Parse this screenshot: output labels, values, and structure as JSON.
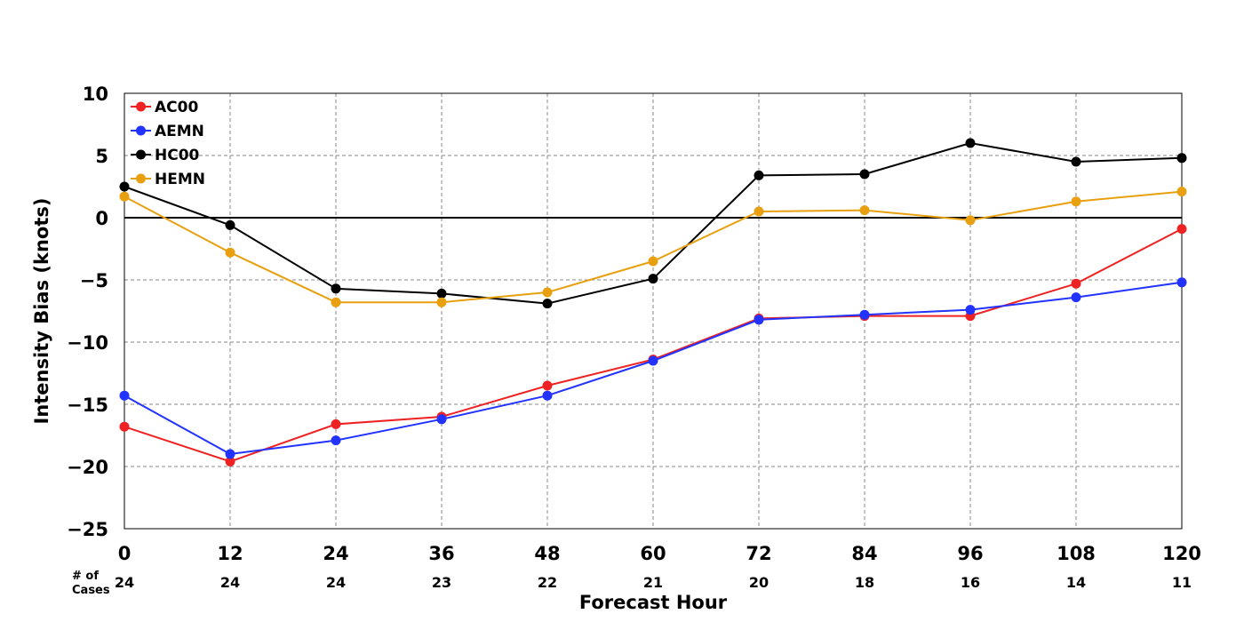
{
  "chart_data": {
    "type": "line",
    "xlabel": "Forecast Hour",
    "ylabel": "Intensity Bias (knots)",
    "x": [
      0,
      12,
      24,
      36,
      48,
      60,
      72,
      84,
      96,
      108,
      120
    ],
    "xlim": [
      0,
      120
    ],
    "ylim": [
      -25,
      10
    ],
    "yticks": [
      10,
      5,
      0,
      -5,
      -10,
      -15,
      -20,
      -25
    ],
    "ytick_labels": [
      "10",
      "5",
      "0",
      "−5",
      "−10",
      "−15",
      "−20",
      "−25"
    ],
    "xtick_labels": [
      "0",
      "12",
      "24",
      "36",
      "48",
      "60",
      "72",
      "84",
      "96",
      "108",
      "120"
    ],
    "grid": true,
    "legend_position": "top-left",
    "cases_label": [
      "# of",
      "Cases"
    ],
    "cases": [
      "24",
      "24",
      "24",
      "23",
      "22",
      "21",
      "20",
      "18",
      "16",
      "14",
      "11"
    ],
    "series": [
      {
        "name": "AC00",
        "color": "#ee2222",
        "values": [
          -16.8,
          -19.6,
          -16.6,
          -16.0,
          -13.5,
          -11.4,
          -8.1,
          -7.9,
          -7.9,
          -5.3,
          -0.9
        ]
      },
      {
        "name": "AEMN",
        "color": "#2233ff",
        "values": [
          -14.3,
          -19.0,
          -17.9,
          -16.2,
          -14.3,
          -11.5,
          -8.2,
          -7.8,
          -7.4,
          -6.4,
          -5.2
        ]
      },
      {
        "name": "HC00",
        "color": "#000000",
        "values": [
          2.5,
          -0.6,
          -5.7,
          -6.1,
          -6.9,
          -4.9,
          3.4,
          3.5,
          6.0,
          4.5,
          4.8
        ]
      },
      {
        "name": "HEMN",
        "color": "#e8a010",
        "values": [
          1.7,
          -2.8,
          -6.8,
          -6.8,
          -6.0,
          -3.5,
          0.5,
          0.6,
          -0.2,
          1.3,
          2.1
        ]
      }
    ]
  }
}
